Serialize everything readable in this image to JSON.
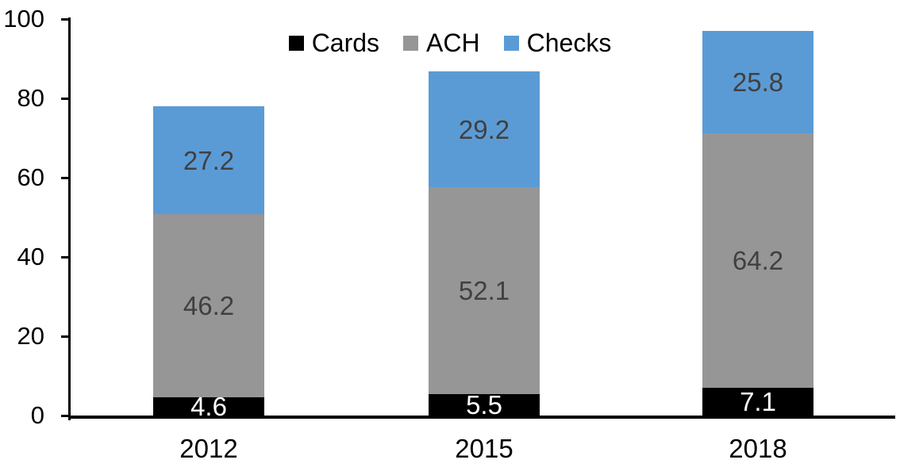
{
  "chart_data": {
    "type": "bar",
    "stacked": true,
    "title": "",
    "xlabel": "",
    "ylabel": "",
    "categories": [
      "2012",
      "2015",
      "2018"
    ],
    "series": [
      {
        "name": "Cards",
        "color": "#000000",
        "label_color": "#FFFFFF",
        "values": [
          4.6,
          5.5,
          7.1
        ]
      },
      {
        "name": "ACH",
        "color": "#969696",
        "label_color": "#404040",
        "values": [
          46.2,
          52.1,
          64.2
        ]
      },
      {
        "name": "Checks",
        "color": "#5B9BD5",
        "label_color": "#404040",
        "values": [
          27.2,
          29.2,
          25.8
        ]
      }
    ],
    "totals": [
      78.0,
      86.8,
      97.1
    ],
    "ylim": [
      0,
      100
    ],
    "yticks": [
      0,
      20,
      40,
      60,
      80,
      100
    ],
    "grid": false,
    "legend_position": "top-center",
    "data_labels": "inside-center"
  }
}
